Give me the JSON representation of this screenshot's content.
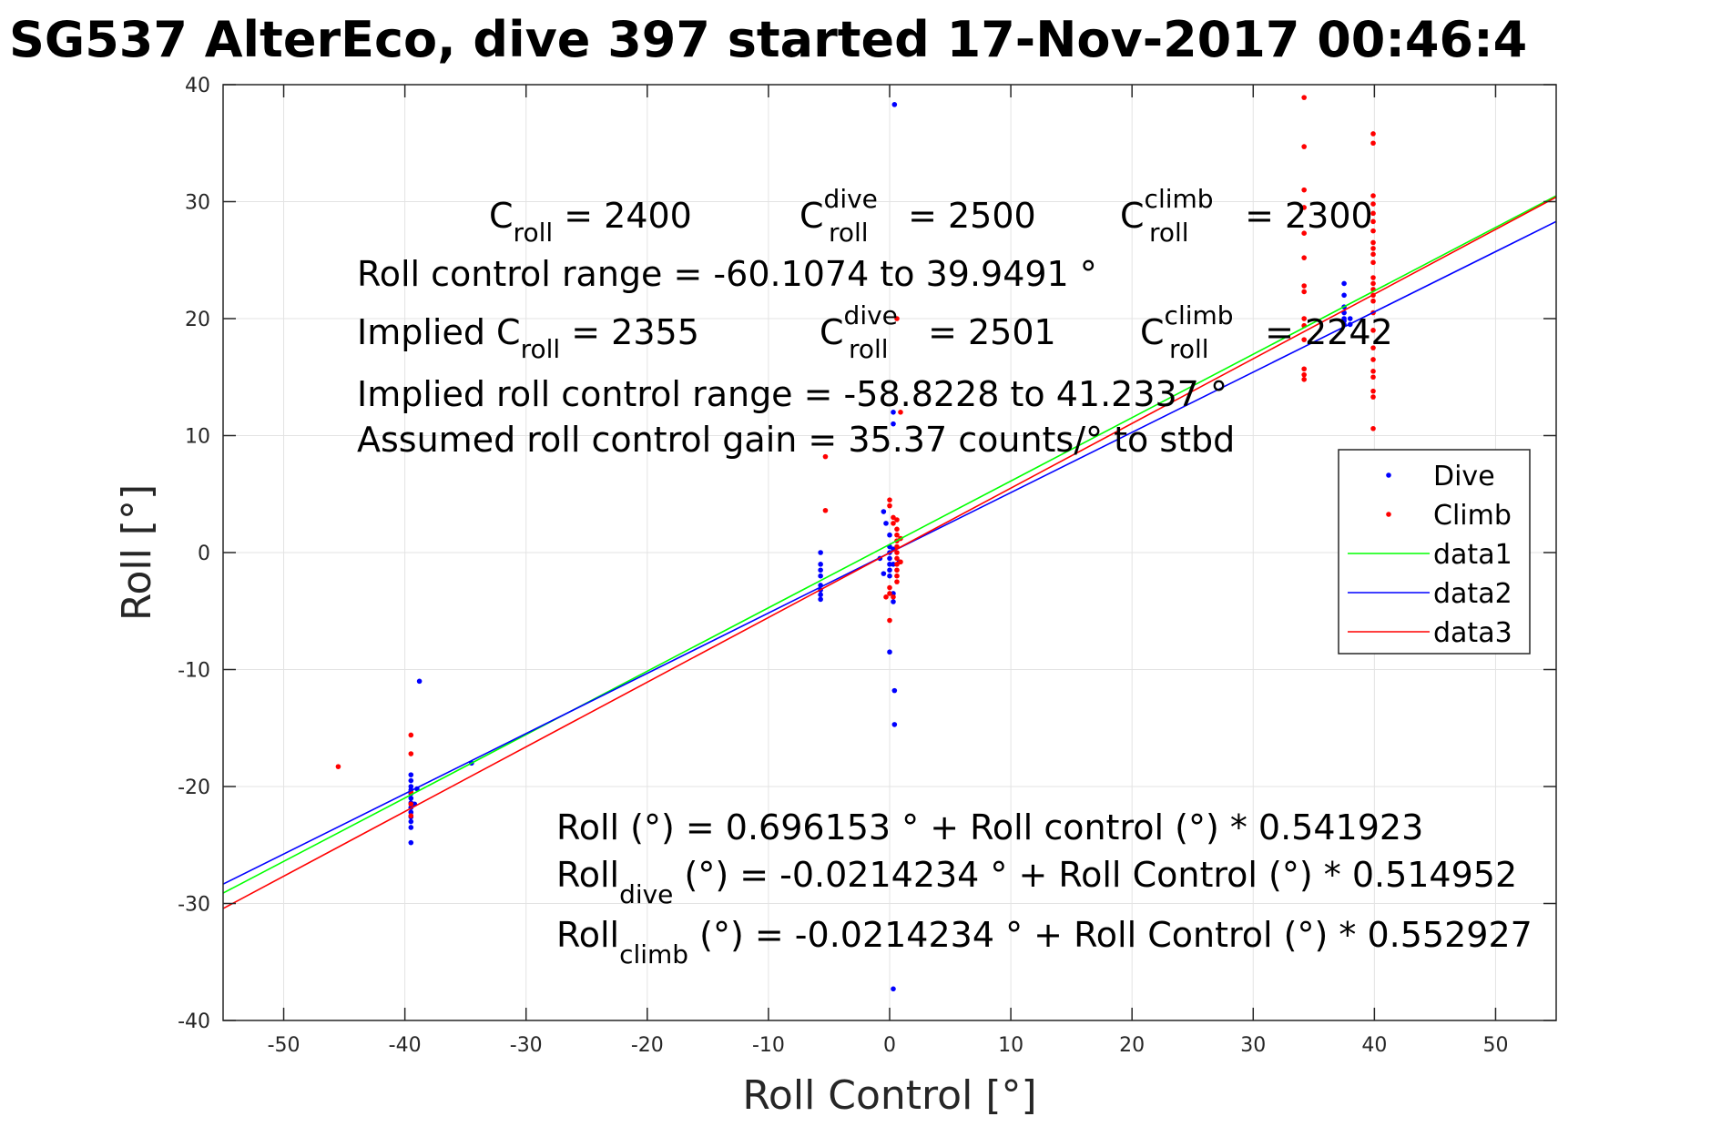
{
  "chart_data": {
    "type": "scatter",
    "title": "SG537 AlterEco, dive 397 started 17-Nov-2017 00:46:4",
    "xlabel": "Roll Control [°]",
    "ylabel": "Roll [°]",
    "xlim": [
      -55,
      55
    ],
    "ylim": [
      -40,
      40
    ],
    "xticks": [
      -50,
      -40,
      -30,
      -20,
      -10,
      0,
      10,
      20,
      30,
      40,
      50
    ],
    "yticks": [
      -40,
      -30,
      -20,
      -10,
      0,
      10,
      20,
      30,
      40
    ],
    "xtick_labels": [
      "-50",
      "-40",
      "-30",
      "-20",
      "-10",
      "0",
      "10",
      "20",
      "30",
      "40",
      "50"
    ],
    "ytick_labels": [
      "-40",
      "-30",
      "-20",
      "-10",
      "0",
      "10",
      "20",
      "30",
      "40"
    ],
    "grid": true,
    "legend_position": "right",
    "series": [
      {
        "name": "Dive",
        "kind": "points",
        "color": "#0000ff",
        "points": [
          [
            -39.5,
            -19.0
          ],
          [
            -39.5,
            -19.5
          ],
          [
            -39.5,
            -20.0
          ],
          [
            -39.5,
            -20.3
          ],
          [
            -39.5,
            -20.6
          ],
          [
            -39.5,
            -21.0
          ],
          [
            -39.5,
            -21.4
          ],
          [
            -39.5,
            -21.8
          ],
          [
            -39.5,
            -22.2
          ],
          [
            -39.5,
            -22.6
          ],
          [
            -39.5,
            -23.0
          ],
          [
            -39.5,
            -23.5
          ],
          [
            -39.5,
            -24.8
          ],
          [
            -39.0,
            -20.2
          ],
          [
            -39.2,
            -21.5
          ],
          [
            -38.8,
            -11.0
          ],
          [
            -34.5,
            -18.0
          ],
          [
            -5.7,
            0.0
          ],
          [
            -5.7,
            -1.0
          ],
          [
            -5.7,
            -1.5
          ],
          [
            -5.7,
            -2.0
          ],
          [
            -5.7,
            -2.8
          ],
          [
            -5.7,
            -3.2
          ],
          [
            -5.7,
            -3.6
          ],
          [
            -5.7,
            -4.0
          ],
          [
            -0.5,
            3.5
          ],
          [
            -0.3,
            2.5
          ],
          [
            0.0,
            1.5
          ],
          [
            0.0,
            0.5
          ],
          [
            0.0,
            0.0
          ],
          [
            0.0,
            -0.5
          ],
          [
            0.0,
            -1.0
          ],
          [
            0.0,
            -1.5
          ],
          [
            0.0,
            -2.0
          ],
          [
            0.3,
            -1.0
          ],
          [
            0.3,
            0.3
          ],
          [
            0.4,
            38.3
          ],
          [
            0.3,
            12.0
          ],
          [
            0.3,
            11.0
          ],
          [
            0.3,
            -3.5
          ],
          [
            0.3,
            -4.2
          ],
          [
            0.0,
            -8.5
          ],
          [
            0.4,
            -11.8
          ],
          [
            0.4,
            -14.7
          ],
          [
            0.3,
            -37.3
          ],
          [
            -0.5,
            -1.8
          ],
          [
            -0.8,
            -0.5
          ],
          [
            0.8,
            -0.8
          ],
          [
            37.5,
            23.0
          ],
          [
            37.5,
            22.0
          ],
          [
            37.5,
            21.0
          ],
          [
            37.5,
            20.5
          ],
          [
            37.5,
            20.0
          ],
          [
            37.5,
            19.8
          ],
          [
            37.5,
            19.5
          ],
          [
            38.0,
            20.0
          ],
          [
            38.0,
            19.5
          ]
        ]
      },
      {
        "name": "Climb",
        "kind": "points",
        "color": "#ff0000",
        "points": [
          [
            -45.5,
            -18.3
          ],
          [
            -39.5,
            -15.6
          ],
          [
            -39.5,
            -17.2
          ],
          [
            -39.5,
            -20.5
          ],
          [
            -39.5,
            -21.5
          ],
          [
            -39.5,
            -22.5
          ],
          [
            -5.3,
            8.2
          ],
          [
            -5.3,
            3.6
          ],
          [
            0.0,
            4.5
          ],
          [
            0.0,
            4.0
          ],
          [
            0.3,
            3.0
          ],
          [
            0.3,
            2.5
          ],
          [
            0.6,
            2.0
          ],
          [
            0.6,
            1.5
          ],
          [
            0.6,
            1.0
          ],
          [
            0.6,
            0.5
          ],
          [
            0.6,
            0.0
          ],
          [
            0.6,
            -0.5
          ],
          [
            0.6,
            -1.0
          ],
          [
            0.6,
            -1.5
          ],
          [
            0.6,
            -2.0
          ],
          [
            0.6,
            -2.5
          ],
          [
            0.0,
            -3.0
          ],
          [
            0.0,
            -3.5
          ],
          [
            0.3,
            -3.8
          ],
          [
            0.0,
            -5.8
          ],
          [
            0.6,
            20.0
          ],
          [
            0.9,
            12.0
          ],
          [
            0.6,
            2.8
          ],
          [
            0.9,
            1.2
          ],
          [
            0.9,
            -0.8
          ],
          [
            -0.3,
            -3.8
          ],
          [
            34.2,
            38.9
          ],
          [
            34.2,
            34.7
          ],
          [
            34.2,
            31.0
          ],
          [
            34.2,
            29.5
          ],
          [
            34.2,
            27.3
          ],
          [
            34.2,
            25.2
          ],
          [
            34.2,
            22.8
          ],
          [
            34.2,
            22.3
          ],
          [
            34.2,
            20.0
          ],
          [
            34.2,
            19.4
          ],
          [
            34.2,
            18.2
          ],
          [
            34.2,
            15.7
          ],
          [
            34.2,
            15.2
          ],
          [
            34.2,
            14.8
          ],
          [
            39.9,
            35.8
          ],
          [
            39.9,
            35.0
          ],
          [
            39.9,
            30.5
          ],
          [
            39.9,
            29.8
          ],
          [
            39.9,
            29.0
          ],
          [
            39.9,
            28.3
          ],
          [
            39.9,
            27.5
          ],
          [
            39.9,
            26.5
          ],
          [
            39.9,
            26.0
          ],
          [
            39.9,
            25.5
          ],
          [
            39.9,
            24.8
          ],
          [
            39.9,
            23.5
          ],
          [
            39.9,
            23.0
          ],
          [
            39.9,
            22.5
          ],
          [
            39.9,
            22.0
          ],
          [
            39.9,
            21.5
          ],
          [
            39.9,
            20.5
          ],
          [
            39.9,
            19.0
          ],
          [
            39.9,
            17.5
          ],
          [
            39.9,
            16.5
          ],
          [
            39.9,
            15.5
          ],
          [
            39.9,
            15.0
          ],
          [
            39.9,
            13.8
          ],
          [
            39.9,
            13.3
          ],
          [
            39.9,
            10.6
          ]
        ]
      },
      {
        "name": "data1",
        "kind": "line",
        "color": "#00ff00",
        "intercept": 0.696153,
        "slope": 0.541923
      },
      {
        "name": "data2",
        "kind": "line",
        "color": "#0000ff",
        "intercept": -0.0214234,
        "slope": 0.514952
      },
      {
        "name": "data3",
        "kind": "line",
        "color": "#ff0000",
        "intercept": -0.0214234,
        "slope": 0.552927
      }
    ],
    "annotations_top": {
      "line1": {
        "c1": {
          "base": "C",
          "sub": "roll",
          "sup": "",
          "rest": " = 2400"
        },
        "c2": {
          "base": "C",
          "sub": "roll",
          "sup": "dive",
          "rest": " = 2500"
        },
        "c3": {
          "base": "C",
          "sub": "roll",
          "sup": "climb",
          "rest": " = 2300"
        }
      },
      "line2": "Roll control range = -60.1074 to 39.9491 °",
      "line3": {
        "prefix": "Implied ",
        "c1": {
          "base": "C",
          "sub": "roll",
          "sup": "",
          "rest": " = 2355"
        },
        "c2": {
          "base": "C",
          "sub": "roll",
          "sup": "dive",
          "rest": " = 2501"
        },
        "c3": {
          "base": "C",
          "sub": "roll",
          "sup": "climb",
          "rest": " = 2242"
        }
      },
      "line4": "Implied roll control range = -58.8228 to 41.2337 °",
      "line5": "Assumed roll control gain = 35.37 counts/° to stbd"
    },
    "annotations_bottom": {
      "line1": {
        "base": "Roll",
        "sub": "",
        "rest": " (°) = 0.696153 ° + Roll control (°) * 0.541923"
      },
      "line2": {
        "base": "Roll",
        "sub": "dive",
        "rest": " (°) = -0.0214234 ° + Roll Control (°) * 0.514952"
      },
      "line3": {
        "base": "Roll",
        "sub": "climb",
        "rest": " (°) = -0.0214234 ° + Roll Control (°) * 0.552927"
      }
    }
  }
}
